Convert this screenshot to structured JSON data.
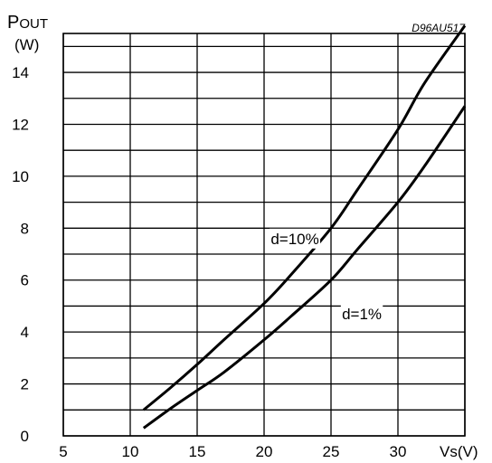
{
  "chart_data": {
    "type": "line",
    "figure_code": "D96AU517",
    "ylabel": {
      "main": "P",
      "subscript": "OUT",
      "unit": "(W)"
    },
    "xlabel": "Vs(V)",
    "xlim": [
      5,
      35
    ],
    "ylim": [
      0,
      15.5
    ],
    "x_ticks": [
      "5",
      "10",
      "15",
      "20",
      "25",
      "30"
    ],
    "y_ticks": [
      "0",
      "2",
      "4",
      "6",
      "8",
      "10",
      "12",
      "14"
    ],
    "grid": true,
    "series": [
      {
        "name": "d=10%",
        "x": [
          11,
          13,
          15,
          17,
          20,
          22,
          25,
          27,
          30,
          32,
          35
        ],
        "y": [
          1.0,
          1.85,
          2.75,
          3.7,
          5.1,
          6.2,
          8.0,
          9.5,
          11.8,
          13.6,
          15.8
        ]
      },
      {
        "name": "d=1%",
        "x": [
          11,
          13,
          15,
          17,
          20,
          22,
          25,
          27,
          30,
          32,
          35
        ],
        "y": [
          0.3,
          1.05,
          1.75,
          2.45,
          3.7,
          4.6,
          6.0,
          7.2,
          9.0,
          10.4,
          12.7
        ]
      }
    ]
  }
}
